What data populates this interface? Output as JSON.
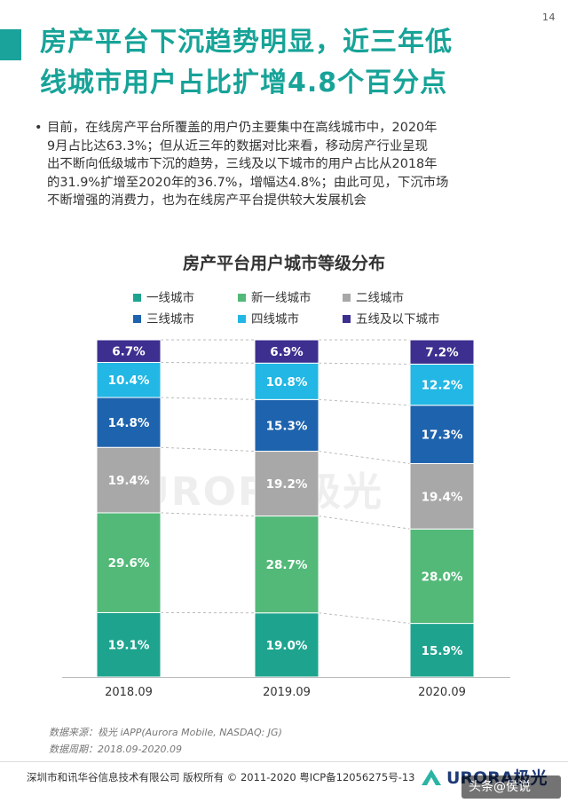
{
  "page_number": "14",
  "title_line1": "房产平台下沉趋势明显，近三年低",
  "title_line2": "线城市用户占比扩增4.8个百分点",
  "bullet_dot": "•",
  "bullet_lines": [
    "目前，在线房产平台所覆盖的用户仍主要集中在高线城市中，2020年",
    "9月占比达63.3%；但从近三年的数据对比来看，移动房产行业呈现",
    "出不断向低级城市下沉的趋势，三线及以下城市的用户占比从2018年",
    "的31.9%扩增至2020年的36.7%，增幅达4.8%；由此可见，下沉市场",
    "不断增强的消费力，也为在线房产平台提供较大发展机会"
  ],
  "watermark": "URORA极光",
  "source_lines": [
    "数据来源：极光 iAPP(Aurora Mobile, NASDAQ: JG)",
    "数据周期：2018.09-2020.09"
  ],
  "footer": {
    "text": "深圳市和讯华谷信息技术有限公司 版权所有 © 2011-2020 粤ICP备12056275号-13",
    "logo": "URORA极光",
    "handle": "头条@侯说"
  },
  "colors": {
    "accent": "#17a398",
    "series": [
      "#1ea48e",
      "#52b978",
      "#a8a8a8",
      "#1e63ad",
      "#22b7e4",
      "#3d2f8f"
    ]
  },
  "chart_data": {
    "type": "bar",
    "stacked": true,
    "normalized": true,
    "title": "房产平台用户城市等级分布",
    "categories": [
      "2018.09",
      "2019.09",
      "2020.09"
    ],
    "series": [
      {
        "name": "一线城市",
        "values": [
          19.1,
          19.0,
          15.9
        ]
      },
      {
        "name": "新一线城市",
        "values": [
          29.6,
          28.7,
          28.0
        ]
      },
      {
        "name": "二线城市",
        "values": [
          19.4,
          19.2,
          19.4
        ]
      },
      {
        "name": "三线城市",
        "values": [
          14.8,
          15.3,
          17.3
        ]
      },
      {
        "name": "四线城市",
        "values": [
          10.4,
          10.8,
          12.2
        ]
      },
      {
        "name": "五线及以下城市",
        "values": [
          6.7,
          6.9,
          7.2
        ]
      }
    ],
    "value_suffix": "%",
    "legend_position": "top",
    "grid": false
  }
}
